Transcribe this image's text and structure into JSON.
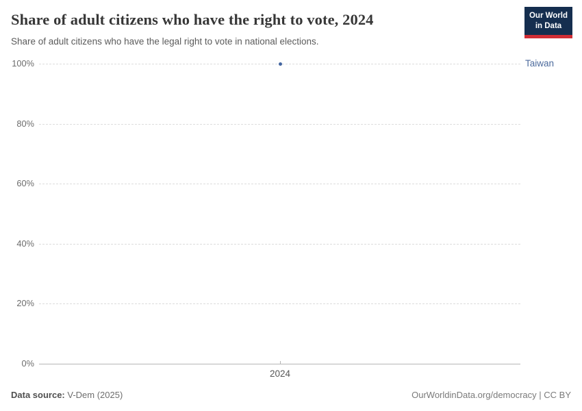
{
  "header": {
    "title": "Share of adult citizens who have the right to vote, 2024",
    "subtitle": "Share of adult citizens who have the legal right to vote in national elections.",
    "logo": {
      "line1": "Our World",
      "line2": "in Data"
    }
  },
  "chart_data": {
    "type": "scatter",
    "title": "Share of adult citizens who have the right to vote, 2024",
    "subtitle": "Share of adult citizens who have the legal right to vote in national elections.",
    "series": [
      {
        "name": "Taiwan",
        "x": [
          2024
        ],
        "values": [
          100
        ]
      }
    ],
    "x_ticks": [
      "2024"
    ],
    "y_ticks": [
      0,
      20,
      40,
      60,
      80,
      100
    ],
    "y_tick_suffix": "%",
    "ylim": [
      0,
      100
    ],
    "grid": "horizontal-dashed",
    "legend_position": "right-of-plot",
    "colors": {
      "point": "#4466a0",
      "entity_label": "#4c6a9c",
      "grid": "#dcdcdc",
      "axis": "#b5b5b5"
    }
  },
  "footer": {
    "source_label": "Data source:",
    "source_value": "V-Dem (2025)",
    "link": "OurWorldinData.org/democracy | CC BY"
  }
}
